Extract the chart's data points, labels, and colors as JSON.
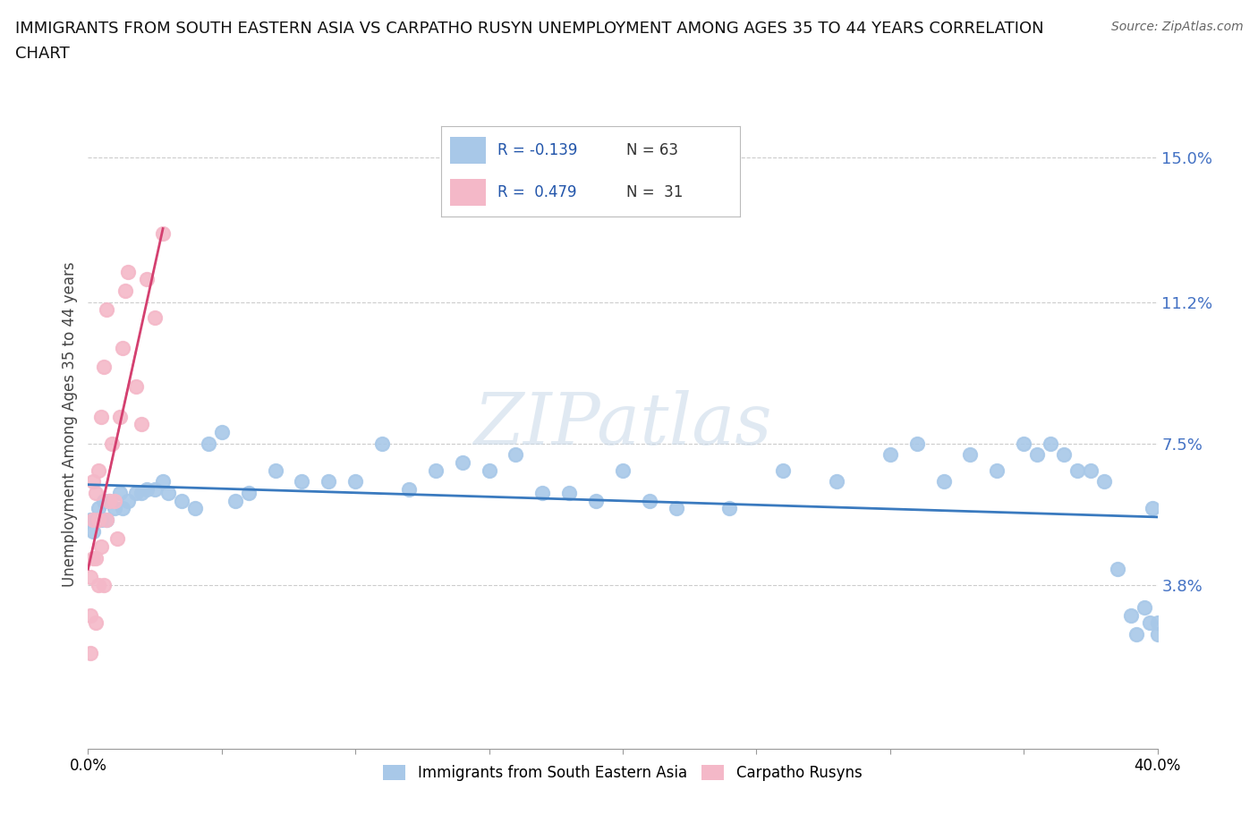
{
  "title_line1": "IMMIGRANTS FROM SOUTH EASTERN ASIA VS CARPATHO RUSYN UNEMPLOYMENT AMONG AGES 35 TO 44 YEARS CORRELATION",
  "title_line2": "CHART",
  "source_text": "Source: ZipAtlas.com",
  "ylabel": "Unemployment Among Ages 35 to 44 years",
  "xmin": 0.0,
  "xmax": 0.4,
  "ymin": -0.005,
  "ymax": 0.165,
  "yticks": [
    0.038,
    0.075,
    0.112,
    0.15
  ],
  "ytick_labels": [
    "3.8%",
    "7.5%",
    "11.2%",
    "15.0%"
  ],
  "xticks": [
    0.0,
    0.05,
    0.1,
    0.15,
    0.2,
    0.25,
    0.3,
    0.35,
    0.4
  ],
  "xtick_labels": [
    "0.0%",
    "",
    "",
    "",
    "",
    "",
    "",
    "",
    "40.0%"
  ],
  "blue_color": "#a8c8e8",
  "pink_color": "#f4b8c8",
  "trend_blue_color": "#3a7abf",
  "trend_pink_color": "#d44070",
  "trend_pink_dash_color": "#e090a8",
  "legend_R1": "R = -0.139",
  "legend_N1": "N = 63",
  "legend_R2": "R =  0.479",
  "legend_N2": "N =  31",
  "legend_label1": "Immigrants from South Eastern Asia",
  "legend_label2": "Carpatho Rusyns",
  "blue_x": [
    0.001,
    0.002,
    0.003,
    0.004,
    0.005,
    0.006,
    0.007,
    0.008,
    0.01,
    0.012,
    0.013,
    0.015,
    0.018,
    0.02,
    0.022,
    0.025,
    0.028,
    0.03,
    0.035,
    0.04,
    0.045,
    0.05,
    0.055,
    0.06,
    0.07,
    0.08,
    0.09,
    0.1,
    0.11,
    0.12,
    0.13,
    0.14,
    0.15,
    0.16,
    0.17,
    0.18,
    0.19,
    0.2,
    0.21,
    0.22,
    0.24,
    0.26,
    0.28,
    0.3,
    0.31,
    0.32,
    0.33,
    0.34,
    0.35,
    0.355,
    0.36,
    0.365,
    0.37,
    0.375,
    0.38,
    0.385,
    0.39,
    0.392,
    0.395,
    0.397,
    0.398,
    0.4,
    0.4
  ],
  "blue_y": [
    0.055,
    0.052,
    0.055,
    0.058,
    0.055,
    0.06,
    0.055,
    0.06,
    0.058,
    0.062,
    0.058,
    0.06,
    0.062,
    0.062,
    0.063,
    0.063,
    0.065,
    0.062,
    0.06,
    0.058,
    0.075,
    0.078,
    0.06,
    0.062,
    0.068,
    0.065,
    0.065,
    0.065,
    0.075,
    0.063,
    0.068,
    0.07,
    0.068,
    0.072,
    0.062,
    0.062,
    0.06,
    0.068,
    0.06,
    0.058,
    0.058,
    0.068,
    0.065,
    0.072,
    0.075,
    0.065,
    0.072,
    0.068,
    0.075,
    0.072,
    0.075,
    0.072,
    0.068,
    0.068,
    0.065,
    0.042,
    0.03,
    0.025,
    0.032,
    0.028,
    0.058,
    0.025,
    0.028
  ],
  "pink_x": [
    0.001,
    0.001,
    0.001,
    0.002,
    0.002,
    0.002,
    0.003,
    0.003,
    0.003,
    0.004,
    0.004,
    0.004,
    0.005,
    0.005,
    0.006,
    0.006,
    0.007,
    0.007,
    0.008,
    0.009,
    0.01,
    0.011,
    0.012,
    0.013,
    0.014,
    0.015,
    0.018,
    0.02,
    0.022,
    0.025,
    0.028
  ],
  "pink_y": [
    0.04,
    0.03,
    0.02,
    0.065,
    0.055,
    0.045,
    0.062,
    0.045,
    0.028,
    0.068,
    0.055,
    0.038,
    0.082,
    0.048,
    0.095,
    0.038,
    0.11,
    0.055,
    0.06,
    0.075,
    0.06,
    0.05,
    0.082,
    0.1,
    0.115,
    0.12,
    0.09,
    0.08,
    0.118,
    0.108,
    0.13
  ],
  "watermark_ZI": "ZI",
  "watermark_P": "P",
  "watermark_atlas": "atlas",
  "background_color": "#ffffff",
  "grid_color": "#cccccc",
  "axis_color": "#999999",
  "title_fontsize": 13,
  "tick_fontsize": 12,
  "ytick_fontsize": 13,
  "ylabel_fontsize": 12
}
